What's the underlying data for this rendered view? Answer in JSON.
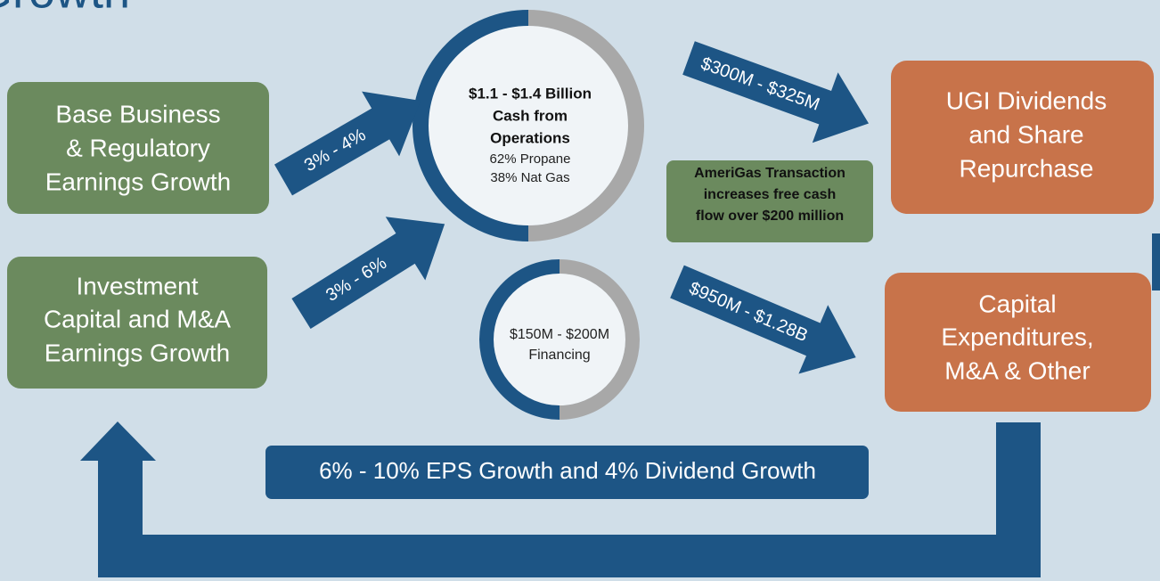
{
  "title": "Growth",
  "sources": [
    {
      "lines": [
        "Base Business",
        "& Regulatory",
        "Earnings Growth"
      ]
    },
    {
      "lines": [
        "Investment",
        "Capital and M&A",
        "Earnings Growth"
      ]
    }
  ],
  "flows": [
    {
      "label": "3% - 4%"
    },
    {
      "label": "3% - 6%"
    },
    {
      "label": "$300M - $325M"
    },
    {
      "label": "$950M - $1.28B"
    }
  ],
  "cash_circle": {
    "bold_lines": [
      "$1.1 - $1.4 Billion",
      "Cash from",
      "Operations"
    ],
    "lines": [
      "62% Propane",
      "38% Nat Gas"
    ]
  },
  "financing_circle": {
    "lines": [
      "$150M - $200M",
      "Financing"
    ]
  },
  "note": {
    "lines": [
      "AmeriGas Transaction",
      "increases free cash",
      "flow over $200 million"
    ]
  },
  "uses": [
    {
      "lines": [
        "UGI Dividends",
        "and Share",
        "Repurchase"
      ]
    },
    {
      "lines": [
        "Capital",
        "Expenditures,",
        "M&A & Other"
      ]
    }
  ],
  "footer": "6% - 10% EPS Growth and 4% Dividend Growth"
}
